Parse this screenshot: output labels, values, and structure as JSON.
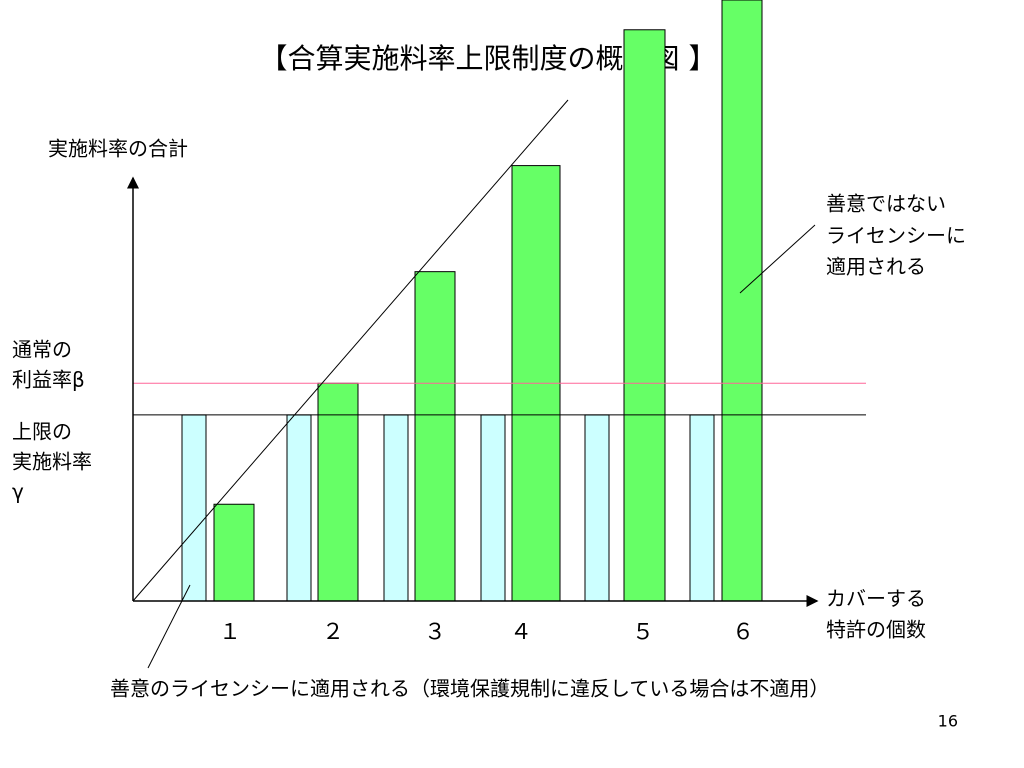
{
  "chart_data": {
    "type": "bar",
    "title": "【合算実施料率上限制度の概念図 】",
    "y_label": "実施料率の合計",
    "x_label": [
      "カバーする",
      "特許の個数"
    ],
    "categories": [
      "１",
      "２",
      "３",
      "４",
      "５",
      "６"
    ],
    "series": [
      {
        "color": "#ccffff",
        "values": [
          1,
          1,
          1,
          1,
          1,
          1
        ]
      },
      {
        "color": "#66ff66",
        "values": [
          0.52,
          1.17,
          1.77,
          2.34,
          3.07,
          3.23
        ]
      }
    ],
    "ylim": [
      0,
      3.23
    ],
    "beta_level": 1.17,
    "beta_color": "#ff6699",
    "gamma_level": 1,
    "beta_label": [
      "通常の",
      "利益率β"
    ],
    "gamma_label": [
      "上限の",
      "実施料率",
      "γ"
    ],
    "upper_note": [
      "善意ではない",
      "ライセンシーに",
      "適用される"
    ],
    "lower_note": "善意のライセンシーに適用される（環境保護規制に違反している場合は不適用）",
    "page_number": "16"
  }
}
